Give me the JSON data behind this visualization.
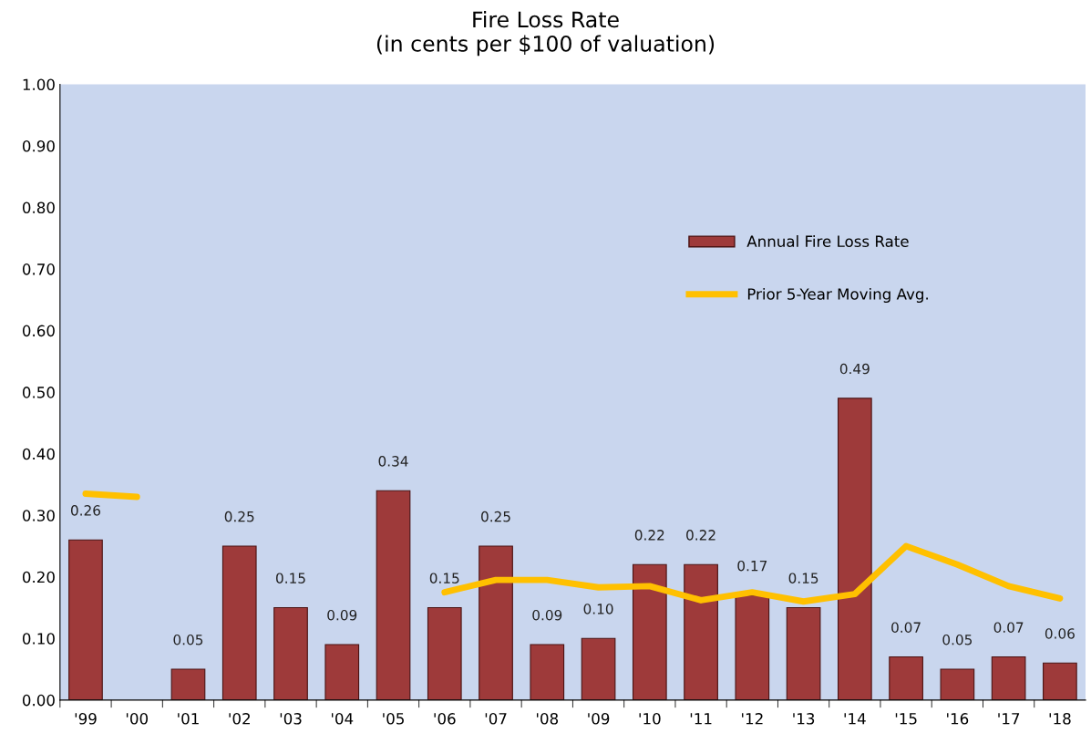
{
  "chart_data": {
    "type": "bar",
    "title": "Fire Loss Rate\n(in cents per $100 of valuation)",
    "categories": [
      "'99",
      "'00",
      "'01",
      "'02",
      "'03",
      "'04",
      "'05",
      "'06",
      "'07",
      "'08",
      "'09",
      "'10",
      "'11",
      "'12",
      "'13",
      "'14",
      "'15",
      "'16",
      "'17",
      "'18"
    ],
    "series": [
      {
        "name": "Annual Fire Loss Rate",
        "color": "#9e3a3a",
        "values": [
          0.26,
          null,
          0.05,
          0.25,
          0.15,
          0.09,
          0.34,
          0.15,
          0.25,
          0.09,
          0.1,
          0.22,
          0.22,
          0.17,
          0.15,
          0.49,
          0.07,
          0.05,
          0.07,
          0.06
        ],
        "value_labels": [
          "0.26",
          null,
          "0.05",
          "0.25",
          "0.15",
          "0.09",
          "0.34",
          "0.15",
          "0.25",
          "0.09",
          "0.10",
          "0.22",
          "0.22",
          "0.17",
          "0.15",
          "0.49",
          "0.07",
          "0.05",
          "0.07",
          "0.06"
        ]
      },
      {
        "name": "Prior 5-Year Moving Avg.",
        "type": "line",
        "color": "#ffc000",
        "values": [
          0.335,
          0.33,
          null,
          null,
          null,
          null,
          null,
          0.175,
          0.195,
          0.195,
          0.183,
          0.185,
          0.162,
          0.175,
          0.16,
          0.172,
          0.25,
          0.22,
          0.185,
          0.165
        ]
      }
    ],
    "ylim": [
      0,
      1
    ],
    "yticks": [
      {
        "value": 0,
        "label": "0.00"
      },
      {
        "value": 0.1,
        "label": "0.10"
      },
      {
        "value": 0.2,
        "label": "0.20"
      },
      {
        "value": 0.3,
        "label": "0.30"
      },
      {
        "value": 0.4,
        "label": "0.40"
      },
      {
        "value": 0.5,
        "label": "0.50"
      },
      {
        "value": 0.6,
        "label": "0.60"
      },
      {
        "value": 0.7,
        "label": "0.70"
      },
      {
        "value": 0.8,
        "label": "0.80"
      },
      {
        "value": 0.9,
        "label": "0.90"
      },
      {
        "value": 1,
        "label": "1.00"
      }
    ],
    "grid": false,
    "legend": "center right",
    "marker": "none",
    "line_style": "solid"
  }
}
